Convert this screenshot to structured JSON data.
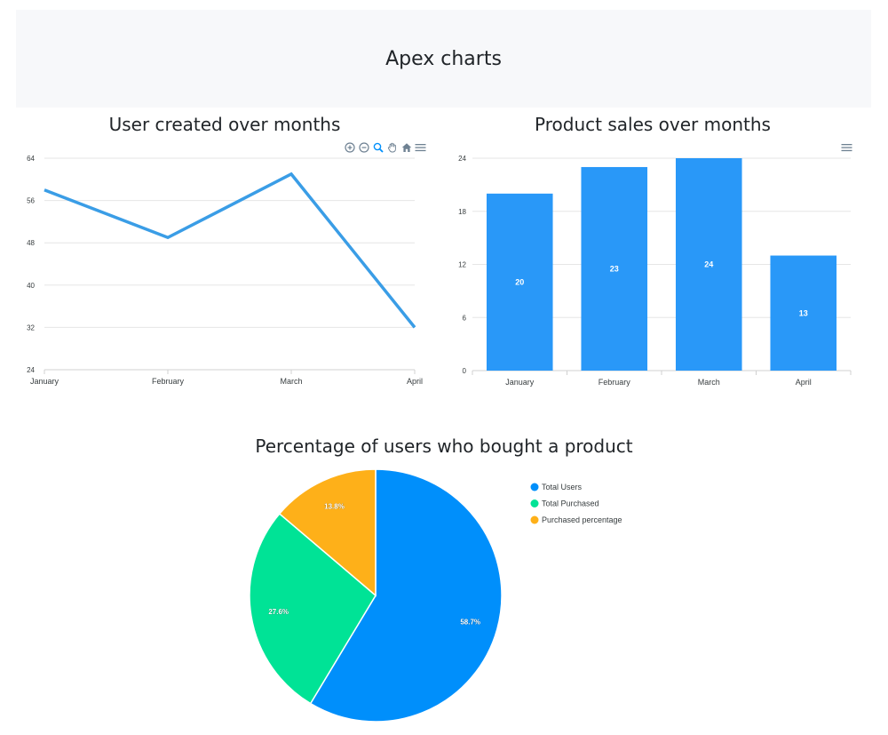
{
  "header": {
    "title": "Apex charts"
  },
  "toolbar_icons": [
    "zoom-in-icon",
    "zoom-out-icon",
    "selection-zoom-icon",
    "pan-icon",
    "reset-zoom-icon",
    "menu-icon"
  ],
  "colors": {
    "line": "#3a9de6",
    "bar": "#2998f8",
    "pie": [
      "#008ffb",
      "#00e396",
      "#feb019"
    ]
  },
  "chart_data": [
    {
      "type": "line",
      "title": "User created over months",
      "categories": [
        "January",
        "February",
        "March",
        "April"
      ],
      "values": [
        58,
        49,
        61,
        32
      ],
      "ylim": [
        24,
        64
      ],
      "yticks": [
        "64",
        "56",
        "48",
        "40",
        "32",
        "24"
      ],
      "grid": true
    },
    {
      "type": "bar",
      "title": "Product sales over months",
      "categories": [
        "January",
        "February",
        "March",
        "April"
      ],
      "values": [
        20,
        23,
        24,
        13
      ],
      "data_labels": [
        "20",
        "23",
        "24",
        "13"
      ],
      "ylim": [
        0,
        24
      ],
      "yticks": [
        "24",
        "18",
        "12",
        "6",
        "0"
      ],
      "grid": true
    },
    {
      "type": "pie",
      "title": "Percentage of users who bought a product",
      "labels": [
        "Total Users",
        "Total Purchased",
        "Purchased percentage"
      ],
      "values": [
        58.7,
        27.6,
        13.8
      ],
      "data_labels": [
        "58.7%",
        "27.6%",
        "13.8%"
      ],
      "legend": "right"
    }
  ]
}
